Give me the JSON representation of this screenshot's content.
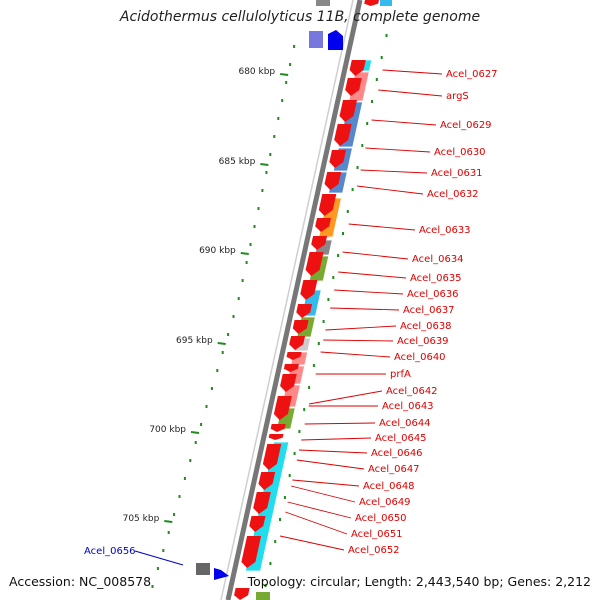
{
  "title": "Acidothermus cellulolyticus 11B, complete genome",
  "footer": {
    "accession": "Accession: NC_008578",
    "topology": "Topology: circular; Length: 2,443,540 bp; Genes: 2,212"
  },
  "colors": {
    "cds_forward": "#ee1111",
    "backbone": "#888888",
    "tick": "#1f8c1f",
    "gene_label": "#dd0000",
    "highlight_label": "#0000cc",
    "cog_palette": [
      "#ff8888",
      "#5588cc",
      "#ff9922",
      "#888888",
      "#77aa33",
      "#33bbee",
      "#cccccc",
      "#22ddee",
      "#33cc33",
      "#7777dd"
    ]
  },
  "scale": {
    "unit": "kbp",
    "tick_labels": [
      "680 kbp",
      "685 kbp",
      "690 kbp",
      "695 kbp",
      "700 kbp",
      "705 kbp"
    ]
  },
  "gene_labels": [
    "Acel_0627",
    "argS",
    "Acel_0629",
    "Acel_0630",
    "Acel_0631",
    "Acel_0632",
    "Acel_0633",
    "Acel_0634",
    "Acel_0635",
    "Acel_0636",
    "Acel_0637",
    "Acel_0638",
    "Acel_0639",
    "Acel_0640",
    "prfA",
    "Acel_0642",
    "Acel_0643",
    "Acel_0644",
    "Acel_0645",
    "Acel_0646",
    "Acel_0647",
    "Acel_0648",
    "Acel_0649",
    "Acel_0650",
    "Acel_0651",
    "Acel_0652"
  ],
  "highlight_label": "Acel_0656"
}
